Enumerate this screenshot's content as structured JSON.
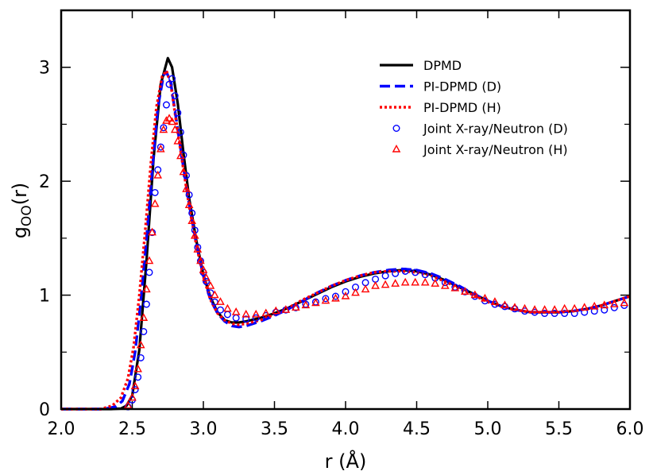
{
  "chart_data": {
    "type": "line",
    "xlabel": "r (Å)",
    "ylabel_main": "g",
    "ylabel_sub": "OO",
    "ylabel_tail": "(r)",
    "xlim": [
      2.0,
      6.0
    ],
    "ylim": [
      0,
      3.5
    ],
    "xticks": [
      {
        "value": 2.0,
        "label": "2.0"
      },
      {
        "value": 2.5,
        "label": "2.5"
      },
      {
        "value": 3.0,
        "label": "3.0"
      },
      {
        "value": 3.5,
        "label": "3.5"
      },
      {
        "value": 4.0,
        "label": "4.0"
      },
      {
        "value": 4.5,
        "label": "4.5"
      },
      {
        "value": 5.0,
        "label": "5.0"
      },
      {
        "value": 5.5,
        "label": "5.5"
      },
      {
        "value": 6.0,
        "label": "6.0"
      }
    ],
    "yticks": [
      {
        "value": 0,
        "label": "0"
      },
      {
        "value": 1,
        "label": "1"
      },
      {
        "value": 2,
        "label": "2"
      },
      {
        "value": 3,
        "label": "3"
      }
    ],
    "y_minor_ticks": [
      0.5,
      1.5,
      2.5,
      3.0
    ],
    "legend_position": "top-right",
    "series": [
      {
        "name": "DPMD",
        "style": "solid-line",
        "color": "#000000",
        "x": [
          2.0,
          2.35,
          2.42,
          2.46,
          2.5,
          2.55,
          2.6,
          2.65,
          2.7,
          2.75,
          2.78,
          2.82,
          2.86,
          2.9,
          2.95,
          3.0,
          3.05,
          3.1,
          3.15,
          3.2,
          3.25,
          3.3,
          3.4,
          3.5,
          3.6,
          3.7,
          3.8,
          3.9,
          4.0,
          4.1,
          4.2,
          4.3,
          4.4,
          4.5,
          4.6,
          4.7,
          4.8,
          4.9,
          5.0,
          5.1,
          5.2,
          5.3,
          5.4,
          5.5,
          5.6,
          5.7,
          5.8,
          5.9,
          6.0
        ],
        "y": [
          0,
          0,
          0.004,
          0.03,
          0.12,
          0.52,
          1.3,
          2.2,
          2.85,
          3.08,
          3.0,
          2.68,
          2.25,
          1.85,
          1.48,
          1.18,
          0.98,
          0.85,
          0.78,
          0.76,
          0.76,
          0.77,
          0.8,
          0.84,
          0.89,
          0.95,
          1.01,
          1.07,
          1.12,
          1.16,
          1.19,
          1.21,
          1.22,
          1.21,
          1.18,
          1.13,
          1.07,
          1.01,
          0.95,
          0.9,
          0.87,
          0.85,
          0.85,
          0.85,
          0.86,
          0.88,
          0.91,
          0.95,
          0.99
        ]
      },
      {
        "name": "PI-DPMD (D)",
        "style": "dashed-line",
        "color": "#0000ff",
        "x": [
          2.0,
          2.3,
          2.38,
          2.43,
          2.48,
          2.52,
          2.56,
          2.6,
          2.64,
          2.68,
          2.72,
          2.74,
          2.77,
          2.8,
          2.85,
          2.9,
          2.95,
          3.0,
          3.05,
          3.1,
          3.15,
          3.2,
          3.25,
          3.3,
          3.4,
          3.5,
          3.6,
          3.7,
          3.8,
          3.9,
          4.0,
          4.1,
          4.2,
          4.3,
          4.4,
          4.5,
          4.6,
          4.7,
          4.8,
          4.9,
          5.0,
          5.1,
          5.2,
          5.3,
          5.4,
          5.5,
          5.6,
          5.7,
          5.8,
          5.9,
          6.0
        ],
        "y": [
          0,
          0,
          0.02,
          0.07,
          0.22,
          0.5,
          0.95,
          1.5,
          2.1,
          2.65,
          2.93,
          2.96,
          2.87,
          2.62,
          2.2,
          1.8,
          1.45,
          1.17,
          0.96,
          0.84,
          0.77,
          0.73,
          0.72,
          0.73,
          0.77,
          0.82,
          0.88,
          0.95,
          1.02,
          1.08,
          1.13,
          1.17,
          1.2,
          1.22,
          1.23,
          1.22,
          1.19,
          1.14,
          1.08,
          1.01,
          0.95,
          0.9,
          0.87,
          0.85,
          0.85,
          0.85,
          0.86,
          0.88,
          0.91,
          0.95,
          0.99
        ]
      },
      {
        "name": "PI-DPMD (H)",
        "style": "dotted-line",
        "color": "#ff0000",
        "x": [
          2.0,
          2.28,
          2.36,
          2.42,
          2.47,
          2.51,
          2.55,
          2.59,
          2.63,
          2.67,
          2.71,
          2.74,
          2.77,
          2.8,
          2.85,
          2.9,
          2.95,
          3.0,
          3.05,
          3.1,
          3.15,
          3.2,
          3.25,
          3.3,
          3.4,
          3.5,
          3.6,
          3.7,
          3.8,
          3.9,
          4.0,
          4.1,
          4.2,
          4.3,
          4.4,
          4.5,
          4.6,
          4.7,
          4.8,
          4.9,
          5.0,
          5.1,
          5.2,
          5.3,
          5.4,
          5.5,
          5.6,
          5.7,
          5.8,
          5.9,
          6.0
        ],
        "y": [
          0,
          0,
          0.03,
          0.1,
          0.27,
          0.55,
          1.0,
          1.55,
          2.15,
          2.65,
          2.92,
          2.97,
          2.86,
          2.6,
          2.18,
          1.78,
          1.44,
          1.16,
          0.96,
          0.84,
          0.78,
          0.75,
          0.74,
          0.75,
          0.78,
          0.83,
          0.89,
          0.96,
          1.02,
          1.08,
          1.13,
          1.17,
          1.2,
          1.21,
          1.21,
          1.2,
          1.17,
          1.12,
          1.06,
          1.0,
          0.94,
          0.9,
          0.87,
          0.85,
          0.85,
          0.85,
          0.86,
          0.88,
          0.91,
          0.95,
          0.99
        ]
      },
      {
        "name": "Joint X-ray/Neutron (D)",
        "style": "open-circle",
        "color": "#0000ff",
        "x": [
          2.47,
          2.5,
          2.52,
          2.54,
          2.56,
          2.58,
          2.6,
          2.62,
          2.64,
          2.66,
          2.68,
          2.7,
          2.72,
          2.74,
          2.76,
          2.78,
          2.8,
          2.82,
          2.84,
          2.86,
          2.88,
          2.9,
          2.92,
          2.94,
          2.96,
          2.98,
          3.0,
          3.02,
          3.05,
          3.08,
          3.12,
          3.17,
          3.23,
          3.3,
          3.37,
          3.44,
          3.51,
          3.58,
          3.65,
          3.72,
          3.79,
          3.86,
          3.93,
          4.0,
          4.07,
          4.14,
          4.21,
          4.28,
          4.35,
          4.42,
          4.49,
          4.56,
          4.63,
          4.7,
          4.77,
          4.84,
          4.91,
          4.98,
          5.05,
          5.12,
          5.19,
          5.26,
          5.33,
          5.4,
          5.47,
          5.54,
          5.61,
          5.68,
          5.75,
          5.82,
          5.89,
          5.96
        ],
        "y": [
          0.02,
          0.08,
          0.17,
          0.28,
          0.45,
          0.68,
          0.92,
          1.2,
          1.55,
          1.9,
          2.1,
          2.3,
          2.47,
          2.67,
          2.85,
          2.9,
          2.75,
          2.6,
          2.43,
          2.23,
          2.05,
          1.88,
          1.72,
          1.57,
          1.42,
          1.3,
          1.2,
          1.12,
          1.02,
          0.94,
          0.87,
          0.83,
          0.8,
          0.79,
          0.8,
          0.82,
          0.85,
          0.87,
          0.89,
          0.92,
          0.94,
          0.97,
          0.99,
          1.03,
          1.07,
          1.11,
          1.14,
          1.17,
          1.19,
          1.21,
          1.2,
          1.18,
          1.15,
          1.11,
          1.07,
          1.03,
          0.99,
          0.95,
          0.92,
          0.9,
          0.88,
          0.86,
          0.85,
          0.84,
          0.84,
          0.84,
          0.84,
          0.85,
          0.86,
          0.87,
          0.89,
          0.91
        ]
      },
      {
        "name": "Joint X-ray/Neutron (H)",
        "style": "open-triangle",
        "color": "#ff0000",
        "x": [
          2.47,
          2.5,
          2.52,
          2.54,
          2.56,
          2.58,
          2.6,
          2.62,
          2.64,
          2.66,
          2.68,
          2.7,
          2.72,
          2.74,
          2.76,
          2.78,
          2.8,
          2.82,
          2.84,
          2.86,
          2.88,
          2.9,
          2.92,
          2.94,
          2.96,
          2.98,
          3.0,
          3.02,
          3.05,
          3.08,
          3.12,
          3.17,
          3.23,
          3.3,
          3.37,
          3.44,
          3.51,
          3.58,
          3.65,
          3.72,
          3.79,
          3.86,
          3.93,
          4.0,
          4.07,
          4.14,
          4.21,
          4.28,
          4.35,
          4.42,
          4.49,
          4.56,
          4.63,
          4.7,
          4.77,
          4.84,
          4.91,
          4.98,
          5.05,
          5.12,
          5.19,
          5.26,
          5.33,
          5.4,
          5.47,
          5.54,
          5.61,
          5.68,
          5.75,
          5.82,
          5.89,
          5.96
        ],
        "y": [
          0.03,
          0.1,
          0.2,
          0.35,
          0.56,
          0.8,
          1.05,
          1.3,
          1.55,
          1.8,
          2.05,
          2.28,
          2.45,
          2.53,
          2.55,
          2.52,
          2.45,
          2.35,
          2.22,
          2.08,
          1.93,
          1.79,
          1.65,
          1.52,
          1.4,
          1.3,
          1.22,
          1.15,
          1.08,
          1.0,
          0.94,
          0.88,
          0.85,
          0.83,
          0.83,
          0.84,
          0.86,
          0.87,
          0.89,
          0.91,
          0.93,
          0.95,
          0.97,
          0.99,
          1.02,
          1.05,
          1.08,
          1.09,
          1.1,
          1.11,
          1.11,
          1.11,
          1.1,
          1.08,
          1.06,
          1.03,
          1.0,
          0.97,
          0.94,
          0.91,
          0.89,
          0.88,
          0.87,
          0.87,
          0.87,
          0.88,
          0.88,
          0.89,
          0.9,
          0.91,
          0.92,
          0.93
        ]
      }
    ]
  }
}
